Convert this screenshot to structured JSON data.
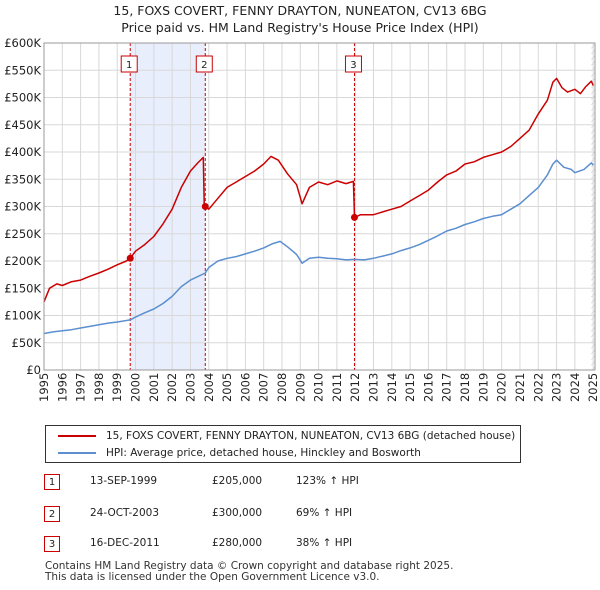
{
  "chart_data": {
    "type": "line",
    "title": "15, FOXS COVERT, FENNY DRAYTON, NUNEATON, CV13 6BG",
    "subtitle": "Price paid vs. HM Land Registry's House Price Index (HPI)",
    "xlim": [
      1995,
      2025.1
    ],
    "ylim": [
      0,
      600000
    ],
    "x_ticks": [
      "1995",
      "1996",
      "1997",
      "1998",
      "1999",
      "2000",
      "2001",
      "2002",
      "2003",
      "2004",
      "2005",
      "2006",
      "2007",
      "2008",
      "2009",
      "2010",
      "2011",
      "2012",
      "2013",
      "2014",
      "2015",
      "2016",
      "2017",
      "2018",
      "2019",
      "2020",
      "2021",
      "2022",
      "2023",
      "2024",
      "2025"
    ],
    "y_ticks": [
      {
        "value": 0,
        "label": "£0"
      },
      {
        "value": 50000,
        "label": "£50K"
      },
      {
        "value": 100000,
        "label": "£100K"
      },
      {
        "value": 150000,
        "label": "£150K"
      },
      {
        "value": 200000,
        "label": "£200K"
      },
      {
        "value": 250000,
        "label": "£250K"
      },
      {
        "value": 300000,
        "label": "£300K"
      },
      {
        "value": 350000,
        "label": "£350K"
      },
      {
        "value": 400000,
        "label": "£400K"
      },
      {
        "value": 450000,
        "label": "£450K"
      },
      {
        "value": 500000,
        "label": "£500K"
      },
      {
        "value": 550000,
        "label": "£550K"
      },
      {
        "value": 600000,
        "label": "£600K"
      }
    ],
    "series": [
      {
        "name": "15, FOXS COVERT, FENNY DRAYTON, NUNEATON, CV13 6BG (detached house)",
        "color": "#cc0000",
        "points": [
          [
            1995.0,
            125000
          ],
          [
            1995.3,
            150000
          ],
          [
            1995.7,
            158000
          ],
          [
            1996.0,
            155000
          ],
          [
            1996.5,
            162000
          ],
          [
            1997.0,
            165000
          ],
          [
            1997.5,
            172000
          ],
          [
            1998.0,
            178000
          ],
          [
            1998.5,
            185000
          ],
          [
            1999.0,
            193000
          ],
          [
            1999.5,
            200000
          ],
          [
            1999.71,
            205000
          ],
          [
            2000.0,
            218000
          ],
          [
            2000.5,
            230000
          ],
          [
            2001.0,
            245000
          ],
          [
            2001.5,
            268000
          ],
          [
            2002.0,
            295000
          ],
          [
            2002.5,
            335000
          ],
          [
            2003.0,
            365000
          ],
          [
            2003.4,
            380000
          ],
          [
            2003.7,
            390000
          ],
          [
            2003.75,
            305000
          ],
          [
            2003.81,
            300000
          ],
          [
            2004.0,
            295000
          ],
          [
            2004.5,
            315000
          ],
          [
            2005.0,
            335000
          ],
          [
            2005.5,
            345000
          ],
          [
            2006.0,
            355000
          ],
          [
            2006.5,
            365000
          ],
          [
            2007.0,
            378000
          ],
          [
            2007.4,
            392000
          ],
          [
            2007.8,
            385000
          ],
          [
            2008.3,
            360000
          ],
          [
            2008.8,
            340000
          ],
          [
            2009.1,
            305000
          ],
          [
            2009.5,
            335000
          ],
          [
            2010.0,
            345000
          ],
          [
            2010.5,
            340000
          ],
          [
            2011.0,
            347000
          ],
          [
            2011.5,
            342000
          ],
          [
            2011.9,
            346000
          ],
          [
            2011.96,
            280000
          ],
          [
            2012.3,
            285000
          ],
          [
            2013.0,
            285000
          ],
          [
            2013.5,
            290000
          ],
          [
            2014.0,
            295000
          ],
          [
            2014.5,
            300000
          ],
          [
            2015.0,
            310000
          ],
          [
            2015.5,
            320000
          ],
          [
            2016.0,
            330000
          ],
          [
            2016.5,
            345000
          ],
          [
            2017.0,
            358000
          ],
          [
            2017.5,
            365000
          ],
          [
            2018.0,
            378000
          ],
          [
            2018.5,
            382000
          ],
          [
            2019.0,
            390000
          ],
          [
            2019.5,
            395000
          ],
          [
            2020.0,
            400000
          ],
          [
            2020.5,
            410000
          ],
          [
            2021.0,
            425000
          ],
          [
            2021.5,
            440000
          ],
          [
            2022.0,
            470000
          ],
          [
            2022.5,
            495000
          ],
          [
            2022.8,
            528000
          ],
          [
            2023.0,
            535000
          ],
          [
            2023.3,
            518000
          ],
          [
            2023.6,
            510000
          ],
          [
            2024.0,
            515000
          ],
          [
            2024.3,
            507000
          ],
          [
            2024.6,
            520000
          ],
          [
            2024.9,
            530000
          ],
          [
            2025.0,
            522000
          ]
        ]
      },
      {
        "name": "HPI: Average price, detached house, Hinckley and Bosworth",
        "color": "#5b8fd0",
        "points": [
          [
            1995.0,
            67000
          ],
          [
            1995.5,
            70000
          ],
          [
            1996.0,
            72000
          ],
          [
            1996.5,
            74000
          ],
          [
            1997.0,
            77000
          ],
          [
            1997.5,
            80000
          ],
          [
            1998.0,
            83000
          ],
          [
            1998.5,
            86000
          ],
          [
            1999.0,
            88000
          ],
          [
            1999.71,
            92000
          ],
          [
            2000.0,
            97000
          ],
          [
            2000.5,
            105000
          ],
          [
            2001.0,
            112000
          ],
          [
            2001.5,
            122000
          ],
          [
            2002.0,
            135000
          ],
          [
            2002.5,
            153000
          ],
          [
            2003.0,
            165000
          ],
          [
            2003.81,
            178000
          ],
          [
            2004.0,
            188000
          ],
          [
            2004.5,
            200000
          ],
          [
            2005.0,
            205000
          ],
          [
            2005.5,
            208000
          ],
          [
            2006.0,
            213000
          ],
          [
            2006.5,
            218000
          ],
          [
            2007.0,
            224000
          ],
          [
            2007.5,
            232000
          ],
          [
            2007.9,
            236000
          ],
          [
            2008.3,
            226000
          ],
          [
            2008.8,
            212000
          ],
          [
            2009.1,
            196000
          ],
          [
            2009.5,
            205000
          ],
          [
            2010.0,
            207000
          ],
          [
            2010.5,
            205000
          ],
          [
            2011.0,
            204000
          ],
          [
            2011.5,
            202000
          ],
          [
            2011.96,
            203000
          ],
          [
            2012.5,
            202000
          ],
          [
            2013.0,
            205000
          ],
          [
            2013.5,
            209000
          ],
          [
            2014.0,
            213000
          ],
          [
            2014.5,
            219000
          ],
          [
            2015.0,
            224000
          ],
          [
            2015.5,
            230000
          ],
          [
            2016.0,
            238000
          ],
          [
            2016.5,
            246000
          ],
          [
            2017.0,
            255000
          ],
          [
            2017.5,
            260000
          ],
          [
            2018.0,
            267000
          ],
          [
            2018.5,
            272000
          ],
          [
            2019.0,
            278000
          ],
          [
            2019.5,
            282000
          ],
          [
            2020.0,
            285000
          ],
          [
            2020.5,
            295000
          ],
          [
            2021.0,
            305000
          ],
          [
            2021.5,
            320000
          ],
          [
            2022.0,
            335000
          ],
          [
            2022.5,
            358000
          ],
          [
            2022.8,
            378000
          ],
          [
            2023.0,
            385000
          ],
          [
            2023.4,
            372000
          ],
          [
            2023.8,
            368000
          ],
          [
            2024.0,
            362000
          ],
          [
            2024.5,
            368000
          ],
          [
            2024.9,
            380000
          ],
          [
            2025.0,
            376000
          ]
        ]
      }
    ],
    "sales": [
      {
        "label": "1",
        "x": 1999.71,
        "price": 205000
      },
      {
        "label": "2",
        "x": 2003.81,
        "price": 300000
      },
      {
        "label": "3",
        "x": 2011.96,
        "price": 280000
      }
    ],
    "shaded_ranges": [
      [
        1999.71,
        2003.81
      ]
    ],
    "hatched_after": 2024.9
  },
  "header": {
    "title": "15, FOXS COVERT, FENNY DRAYTON, NUNEATON, CV13 6BG",
    "subtitle": "Price paid vs. HM Land Registry's House Price Index (HPI)"
  },
  "legend": {
    "property_label": "15, FOXS COVERT, FENNY DRAYTON, NUNEATON, CV13 6BG (detached house)",
    "hpi_label": "HPI: Average price, detached house, Hinckley and Bosworth",
    "property_color": "#cc0000",
    "hpi_color": "#5b8fd0"
  },
  "sales_table": [
    {
      "num": "1",
      "date": "13-SEP-1999",
      "price": "£205,000",
      "hpi": "123% ↑ HPI"
    },
    {
      "num": "2",
      "date": "24-OCT-2003",
      "price": "£300,000",
      "hpi": "69% ↑ HPI"
    },
    {
      "num": "3",
      "date": "16-DEC-2011",
      "price": "£280,000",
      "hpi": "38% ↑ HPI"
    }
  ],
  "footer": {
    "line1": "Contains HM Land Registry data © Crown copyright and database right 2025.",
    "line2": "This data is licensed under the Open Government Licence v3.0."
  }
}
